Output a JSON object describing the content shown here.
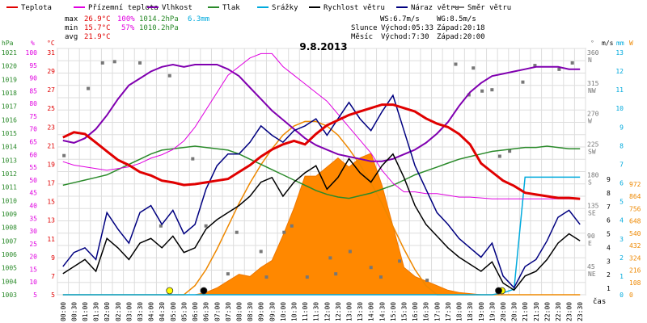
{
  "chart_data": {
    "type": "line",
    "title": "9.8.2013",
    "xlabel": "čas",
    "x_ticks": [
      "00:00",
      "00:30",
      "01:00",
      "01:30",
      "02:00",
      "02:30",
      "03:00",
      "03:30",
      "04:00",
      "04:30",
      "05:00",
      "05:30",
      "06:00",
      "06:30",
      "07:00",
      "07:30",
      "08:00",
      "08:30",
      "09:00",
      "09:30",
      "10:00",
      "10:30",
      "11:00",
      "11:30",
      "12:00",
      "12:30",
      "13:00",
      "13:30",
      "14:00",
      "14:30",
      "15:00",
      "15:30",
      "16:00",
      "16:30",
      "17:00",
      "17:30",
      "18:00",
      "18:30",
      "19:00",
      "19:30",
      "20:00",
      "20:30",
      "21:00",
      "21:30",
      "22:00",
      "22:30",
      "23:00",
      "23:30"
    ],
    "legend": [
      {
        "name": "Teplota",
        "color": "#e00000"
      },
      {
        "name": "Přízemní teplota",
        "color": "#e000e0"
      },
      {
        "name": "Vlhkost",
        "color": "#8000b0"
      },
      {
        "name": "Tlak",
        "color": "#2a8a2a"
      },
      {
        "name": "Srážky",
        "color": "#00aadd"
      },
      {
        "name": "Rychlost větru",
        "color": "#000000"
      },
      {
        "name": "Náraz větru",
        "color": "#000080"
      },
      {
        "name": "Směr větru",
        "color": "#777777"
      }
    ],
    "stats": {
      "max_label": "max",
      "max_temp": "26.9°C",
      "max_hum": "100%",
      "max_press": "1014.2hPa",
      "precip": "6.3mm",
      "min_label": "min",
      "min_temp": "15.7°C",
      "min_hum": "57%",
      "min_press": "1010.2hPa",
      "avg_label": "avg",
      "avg_temp": "21.9°C"
    },
    "wind_info": {
      "ws": "WS:6.7m/s",
      "wg": "WG:8.5m/s"
    },
    "sun_info": {
      "sun_label": "Slunce",
      "sun_rise": "Východ:05:33",
      "sun_set": "Západ:20:18",
      "moon_label": "Měsíc",
      "moon_rise": "Východ:7:30",
      "moon_set": "Západ:20:00"
    },
    "axes": {
      "pressure": {
        "unit": "hPa",
        "ticks": [
          "1021",
          "1020",
          "1019",
          "1018",
          "1017",
          "1016",
          "1015",
          "1014",
          "1013",
          "1012",
          "1011",
          "1010",
          "1009",
          "1008",
          "1007",
          "1006",
          "1005",
          "1004",
          "1003"
        ],
        "color": "#2a8a2a"
      },
      "humidity": {
        "unit": "%",
        "ticks": [
          "100",
          "95",
          "90",
          "85",
          "80",
          "75",
          "70",
          "65",
          "60",
          "55",
          "50",
          "45",
          "40",
          "35",
          "30",
          "25",
          "20",
          "15",
          "10",
          "5"
        ],
        "color": "#e000e0"
      },
      "temperature": {
        "unit": "°C",
        "ticks": [
          "31",
          "29",
          "27",
          "25",
          "23",
          "21",
          "19",
          "17",
          "15",
          "13",
          "11",
          "9",
          "7",
          "5"
        ],
        "color": "#e00000"
      },
      "wind_dir": {
        "unit": "°",
        "ticks": [
          "360",
          "315",
          "270",
          "225",
          "180",
          "135",
          "90",
          "45"
        ],
        "labels": [
          "N",
          "NW",
          "W",
          "SW",
          "S",
          "SE",
          "E",
          "NE"
        ],
        "color": "#777777"
      },
      "wind_speed": {
        "unit": "m/s",
        "ticks": [
          "9",
          "8",
          "7",
          "6",
          "5",
          "4",
          "3",
          "2",
          "1"
        ],
        "color": "#000000"
      },
      "precip": {
        "unit": "mm",
        "ticks": [
          "13",
          "12",
          "11",
          "10",
          "9",
          "8",
          "7",
          "6",
          "5",
          "4",
          "3",
          "2",
          "1",
          "0"
        ],
        "color": "#00aadd"
      },
      "radiation": {
        "unit": "W",
        "ticks": [
          "972",
          "864",
          "756",
          "648",
          "540",
          "432",
          "324",
          "216",
          "108",
          "0"
        ],
        "color": "#ee8800"
      }
    },
    "series": {
      "temperature": [
        22.8,
        23.4,
        23.2,
        22.2,
        21.2,
        20.2,
        19.6,
        18.8,
        18.4,
        17.8,
        17.6,
        17.3,
        17.4,
        17.6,
        17.8,
        18.0,
        18.8,
        19.6,
        20.6,
        21.4,
        22.0,
        22.4,
        22.0,
        23.2,
        24.2,
        24.8,
        25.4,
        25.8,
        26.2,
        26.6,
        26.6,
        26.2,
        25.8,
        25.0,
        24.4,
        24.0,
        23.2,
        22.0,
        19.8,
        18.8,
        17.8,
        17.2,
        16.4,
        16.2,
        16.0,
        15.8,
        15.8,
        15.7
      ],
      "ground_temp": [
        20.0,
        19.6,
        19.4,
        19.2,
        19.0,
        19.2,
        19.4,
        19.8,
        20.4,
        20.8,
        21.4,
        22.4,
        24.0,
        26.0,
        28.0,
        30.0,
        31.0,
        32.0,
        32.5,
        32.5,
        31.0,
        30.0,
        29.0,
        28.0,
        27.0,
        25.5,
        24.0,
        22.5,
        21.0,
        19.0,
        17.5,
        16.5,
        16.5,
        16.3,
        16.3,
        16.1,
        15.9,
        15.9,
        15.8,
        15.7,
        15.7,
        15.7,
        15.7,
        15.7,
        15.7,
        15.7,
        15.7,
        15.7
      ],
      "humidity": [
        67,
        66,
        68,
        72,
        78,
        85,
        91,
        94,
        97,
        99,
        100,
        99,
        100,
        100,
        100,
        98,
        95,
        90,
        85,
        80,
        76,
        72,
        68,
        65,
        63,
        61,
        60,
        59,
        58,
        58,
        59,
        61,
        63,
        66,
        70,
        75,
        82,
        88,
        92,
        95,
        96,
        97,
        98,
        99,
        99,
        99,
        98,
        98
      ],
      "pressure": [
        1011.2,
        1011.4,
        1011.6,
        1011.8,
        1012.0,
        1012.4,
        1012.8,
        1013.2,
        1013.6,
        1013.9,
        1014.0,
        1014.1,
        1014.2,
        1014.1,
        1014.0,
        1013.9,
        1013.6,
        1013.2,
        1012.8,
        1012.4,
        1012.0,
        1011.6,
        1011.2,
        1010.8,
        1010.5,
        1010.3,
        1010.2,
        1010.4,
        1010.6,
        1010.9,
        1011.2,
        1011.6,
        1012.0,
        1012.3,
        1012.6,
        1012.9,
        1013.2,
        1013.4,
        1013.6,
        1013.8,
        1013.9,
        1014.0,
        1014.1,
        1014.1,
        1014.2,
        1014.1,
        1014.0,
        1014.0
      ],
      "wind_speed": [
        0.9,
        1.2,
        1.5,
        1.0,
        2.4,
        2.0,
        1.5,
        2.2,
        2.4,
        2.0,
        2.5,
        1.8,
        2.0,
        2.8,
        3.2,
        3.5,
        3.8,
        4.2,
        4.8,
        5.0,
        4.2,
        4.8,
        5.2,
        5.5,
        4.5,
        5.0,
        5.8,
        5.2,
        4.8,
        5.5,
        6.0,
        5.0,
        3.8,
        3.0,
        2.5,
        2.0,
        1.6,
        1.3,
        1.0,
        1.4,
        0.5,
        0.2,
        0.8,
        1.0,
        1.5,
        2.2,
        2.6,
        2.3
      ],
      "wind_gust": [
        1.2,
        1.8,
        2.0,
        1.5,
        3.5,
        2.8,
        2.2,
        3.5,
        3.8,
        3.0,
        3.6,
        2.6,
        3.0,
        4.5,
        5.5,
        6.0,
        6.0,
        6.5,
        7.2,
        6.8,
        6.5,
        7.0,
        7.2,
        7.5,
        6.8,
        7.5,
        8.2,
        7.5,
        7.0,
        7.8,
        8.5,
        7.0,
        5.5,
        4.5,
        3.5,
        3.0,
        2.4,
        2.0,
        1.6,
        2.2,
        0.8,
        0.3,
        1.2,
        1.5,
        2.3,
        3.3,
        3.6,
        3.0
      ],
      "wind_dir_points": [
        [
          0.6,
          205
        ],
        [
          2.8,
          310
        ],
        [
          4.1,
          350
        ],
        [
          5.2,
          352
        ],
        [
          7.5,
          350
        ],
        [
          9.4,
          95
        ],
        [
          10.2,
          330
        ],
        [
          12.3,
          200
        ],
        [
          13.5,
          95
        ],
        [
          15.5,
          20
        ],
        [
          16.3,
          85
        ],
        [
          18.5,
          55
        ],
        [
          19.0,
          15
        ],
        [
          20.6,
          85
        ],
        [
          21.3,
          95
        ],
        [
          22.7,
          15
        ],
        [
          24.8,
          45
        ],
        [
          25.3,
          20
        ],
        [
          26.6,
          55
        ],
        [
          28.5,
          30
        ],
        [
          29.4,
          15
        ],
        [
          31.1,
          40
        ],
        [
          33.6,
          10
        ],
        [
          36.2,
          348
        ],
        [
          37.4,
          300
        ],
        [
          37.8,
          342
        ],
        [
          38.6,
          306
        ],
        [
          39.5,
          308
        ],
        [
          40.2,
          204
        ],
        [
          41.1,
          212
        ],
        [
          42.3,
          320
        ],
        [
          43.4,
          346
        ],
        [
          45.6,
          340
        ],
        [
          46.8,
          350
        ]
      ],
      "precip_cumulative": [
        0,
        0,
        0,
        0,
        0,
        0,
        0,
        0,
        0,
        0,
        0,
        0,
        0,
        0,
        0,
        0,
        0,
        0,
        0,
        0,
        0,
        0,
        0,
        0,
        0,
        0,
        0,
        0,
        0,
        0,
        0,
        0,
        0,
        0,
        0,
        0,
        0,
        0,
        0,
        0,
        0.1,
        0.3,
        6.3,
        6.3,
        6.3,
        6.3,
        6.3,
        6.3
      ],
      "radiation": [
        0,
        0,
        0,
        0,
        0,
        0,
        0,
        0,
        0,
        0,
        0,
        0,
        0,
        10,
        30,
        60,
        90,
        80,
        120,
        150,
        260,
        380,
        520,
        520,
        560,
        600,
        560,
        600,
        620,
        480,
        300,
        120,
        80,
        60,
        40,
        20,
        10,
        5,
        0,
        0,
        0,
        0,
        0,
        0,
        0,
        0,
        0,
        0
      ],
      "radiation_theoretical": [
        0,
        0,
        0,
        0,
        0,
        0,
        0,
        0,
        0,
        0,
        0,
        0,
        40,
        110,
        200,
        300,
        400,
        490,
        570,
        640,
        700,
        740,
        760,
        760,
        740,
        700,
        640,
        570,
        490,
        400,
        300,
        200,
        110,
        40,
        0,
        0,
        0,
        0,
        0,
        0,
        0,
        0,
        0,
        0,
        0,
        0,
        0,
        0
      ]
    },
    "markers": [
      {
        "type": "sunrise",
        "color": "#ffff00"
      },
      {
        "type": "moonrise",
        "color": "#000000"
      },
      {
        "type": "sunset",
        "color": "#ffff00"
      },
      {
        "type": "moonset",
        "color": "#000000"
      }
    ]
  }
}
